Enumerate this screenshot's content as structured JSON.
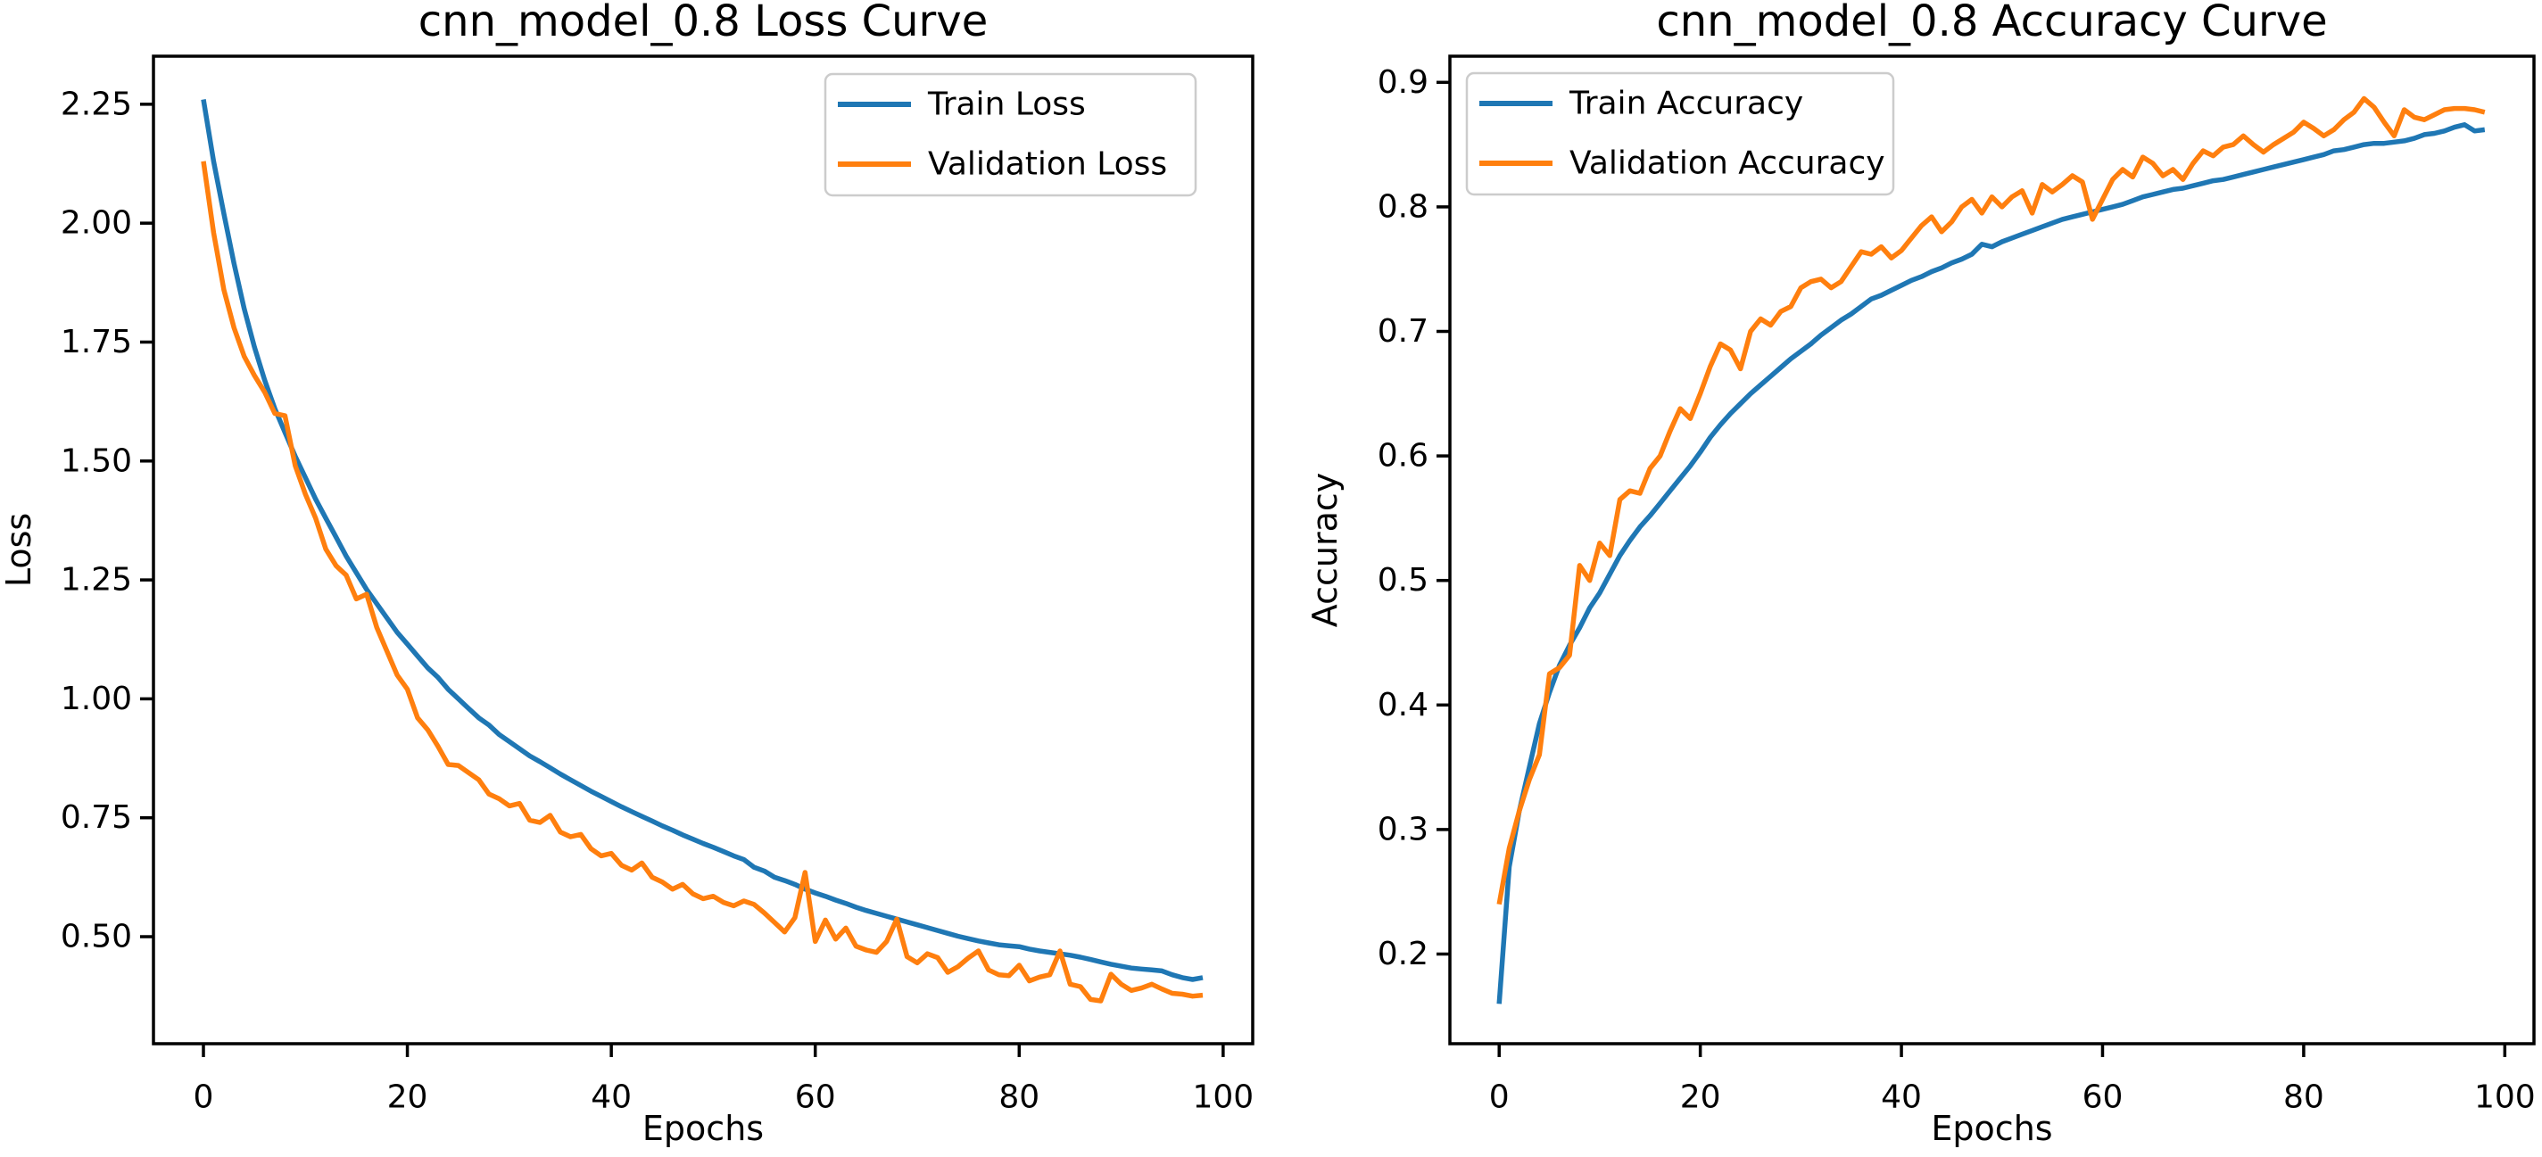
{
  "figure": {
    "background": "#ffffff",
    "colors": {
      "train": "#1f77b4",
      "validation": "#ff7f0e",
      "spine": "#000000",
      "text": "#000000",
      "legend_border": "#cccccc",
      "legend_fill": "#ffffff"
    }
  },
  "chart_data": [
    {
      "type": "line",
      "title": "cnn_model_0.8 Loss Curve",
      "xlabel": "Epochs",
      "ylabel": "Loss",
      "grid": false,
      "legend_loc": "upper center-right",
      "xlim": [
        -4.9,
        102.9
      ],
      "ylim": [
        0.275,
        2.351
      ],
      "epochs_start": 0,
      "epochs_step": 1,
      "xticks": [
        0,
        20,
        40,
        60,
        80,
        100
      ],
      "xtick_labels": [
        "0",
        "20",
        "40",
        "60",
        "80",
        "100"
      ],
      "yticks": [
        0.5,
        0.75,
        1.0,
        1.25,
        1.5,
        1.75,
        2.0,
        2.25
      ],
      "ytick_labels": [
        "0.50",
        "0.75",
        "1.00",
        "1.25",
        "1.50",
        "1.75",
        "2.00",
        "2.25"
      ],
      "series": [
        {
          "name": "Train Loss",
          "color": "#1f77b4",
          "values": [
            2.26,
            2.13,
            2.02,
            1.915,
            1.82,
            1.74,
            1.67,
            1.61,
            1.56,
            1.51,
            1.465,
            1.42,
            1.38,
            1.34,
            1.3,
            1.265,
            1.23,
            1.2,
            1.17,
            1.14,
            1.115,
            1.09,
            1.065,
            1.045,
            1.02,
            1.0,
            0.98,
            0.96,
            0.945,
            0.925,
            0.91,
            0.895,
            0.88,
            0.868,
            0.855,
            0.842,
            0.83,
            0.818,
            0.806,
            0.795,
            0.784,
            0.773,
            0.763,
            0.753,
            0.743,
            0.733,
            0.724,
            0.714,
            0.705,
            0.696,
            0.688,
            0.679,
            0.67,
            0.662,
            0.646,
            0.638,
            0.625,
            0.618,
            0.61,
            0.6,
            0.592,
            0.585,
            0.577,
            0.57,
            0.562,
            0.555,
            0.549,
            0.543,
            0.537,
            0.531,
            0.525,
            0.519,
            0.513,
            0.507,
            0.501,
            0.496,
            0.491,
            0.487,
            0.483,
            0.481,
            0.479,
            0.474,
            0.47,
            0.467,
            0.464,
            0.461,
            0.457,
            0.452,
            0.447,
            0.442,
            0.438,
            0.434,
            0.432,
            0.43,
            0.428,
            0.42,
            0.414,
            0.41,
            0.414
          ]
        },
        {
          "name": "Validation Loss",
          "color": "#ff7f0e",
          "values": [
            2.13,
            1.98,
            1.86,
            1.78,
            1.72,
            1.68,
            1.645,
            1.6,
            1.595,
            1.49,
            1.43,
            1.38,
            1.315,
            1.28,
            1.26,
            1.21,
            1.22,
            1.15,
            1.1,
            1.05,
            1.02,
            0.96,
            0.935,
            0.9,
            0.862,
            0.86,
            0.845,
            0.83,
            0.8,
            0.79,
            0.775,
            0.78,
            0.745,
            0.74,
            0.755,
            0.72,
            0.71,
            0.715,
            0.685,
            0.67,
            0.675,
            0.65,
            0.64,
            0.655,
            0.625,
            0.615,
            0.6,
            0.61,
            0.59,
            0.58,
            0.585,
            0.572,
            0.565,
            0.575,
            0.568,
            0.55,
            0.53,
            0.51,
            0.54,
            0.635,
            0.49,
            0.535,
            0.495,
            0.518,
            0.48,
            0.472,
            0.467,
            0.49,
            0.537,
            0.458,
            0.445,
            0.464,
            0.456,
            0.425,
            0.437,
            0.455,
            0.47,
            0.43,
            0.42,
            0.418,
            0.44,
            0.407,
            0.415,
            0.42,
            0.47,
            0.4,
            0.395,
            0.368,
            0.365,
            0.421,
            0.4,
            0.387,
            0.392,
            0.4,
            0.39,
            0.381,
            0.379,
            0.375,
            0.377
          ]
        }
      ]
    },
    {
      "type": "line",
      "title": "cnn_model_0.8 Accuracy Curve",
      "xlabel": "Epochs",
      "ylabel": "Accuracy",
      "grid": false,
      "legend_loc": "upper left",
      "xlim": [
        -4.9,
        102.9
      ],
      "ylim": [
        0.128,
        0.921
      ],
      "epochs_start": 0,
      "epochs_step": 1,
      "xticks": [
        0,
        20,
        40,
        60,
        80,
        100
      ],
      "xtick_labels": [
        "0",
        "20",
        "40",
        "60",
        "80",
        "100"
      ],
      "yticks": [
        0.2,
        0.3,
        0.4,
        0.5,
        0.6,
        0.7,
        0.8,
        0.9
      ],
      "ytick_labels": [
        "0.2",
        "0.3",
        "0.4",
        "0.5",
        "0.6",
        "0.7",
        "0.8",
        "0.9"
      ],
      "series": [
        {
          "name": "Train Accuracy",
          "color": "#1f77b4",
          "values": [
            0.16,
            0.27,
            0.315,
            0.35,
            0.385,
            0.41,
            0.432,
            0.448,
            0.462,
            0.478,
            0.49,
            0.505,
            0.52,
            0.532,
            0.543,
            0.552,
            0.562,
            0.572,
            0.582,
            0.592,
            0.603,
            0.615,
            0.625,
            0.634,
            0.642,
            0.65,
            0.657,
            0.664,
            0.671,
            0.678,
            0.684,
            0.69,
            0.697,
            0.703,
            0.709,
            0.714,
            0.72,
            0.726,
            0.729,
            0.733,
            0.737,
            0.741,
            0.744,
            0.748,
            0.751,
            0.755,
            0.758,
            0.762,
            0.77,
            0.768,
            0.772,
            0.775,
            0.778,
            0.781,
            0.784,
            0.787,
            0.79,
            0.792,
            0.794,
            0.796,
            0.798,
            0.8,
            0.802,
            0.805,
            0.808,
            0.81,
            0.812,
            0.814,
            0.815,
            0.817,
            0.819,
            0.821,
            0.822,
            0.824,
            0.826,
            0.828,
            0.83,
            0.832,
            0.834,
            0.836,
            0.838,
            0.84,
            0.842,
            0.845,
            0.846,
            0.848,
            0.85,
            0.851,
            0.851,
            0.852,
            0.853,
            0.855,
            0.858,
            0.859,
            0.861,
            0.864,
            0.866,
            0.861,
            0.862
          ]
        },
        {
          "name": "Validation Accuracy",
          "color": "#ff7f0e",
          "values": [
            0.24,
            0.285,
            0.315,
            0.34,
            0.36,
            0.425,
            0.43,
            0.44,
            0.512,
            0.5,
            0.53,
            0.52,
            0.565,
            0.572,
            0.57,
            0.59,
            0.6,
            0.62,
            0.638,
            0.63,
            0.65,
            0.672,
            0.69,
            0.685,
            0.67,
            0.7,
            0.71,
            0.705,
            0.716,
            0.72,
            0.735,
            0.74,
            0.742,
            0.735,
            0.74,
            0.752,
            0.764,
            0.762,
            0.768,
            0.759,
            0.765,
            0.775,
            0.785,
            0.792,
            0.78,
            0.788,
            0.8,
            0.806,
            0.795,
            0.808,
            0.8,
            0.808,
            0.813,
            0.795,
            0.818,
            0.812,
            0.818,
            0.825,
            0.82,
            0.79,
            0.806,
            0.822,
            0.83,
            0.824,
            0.84,
            0.835,
            0.825,
            0.83,
            0.822,
            0.835,
            0.845,
            0.841,
            0.848,
            0.85,
            0.857,
            0.85,
            0.844,
            0.85,
            0.855,
            0.86,
            0.868,
            0.863,
            0.857,
            0.862,
            0.87,
            0.876,
            0.887,
            0.88,
            0.868,
            0.857,
            0.878,
            0.872,
            0.87,
            0.874,
            0.878,
            0.879,
            0.879,
            0.878,
            0.876
          ]
        }
      ]
    }
  ]
}
